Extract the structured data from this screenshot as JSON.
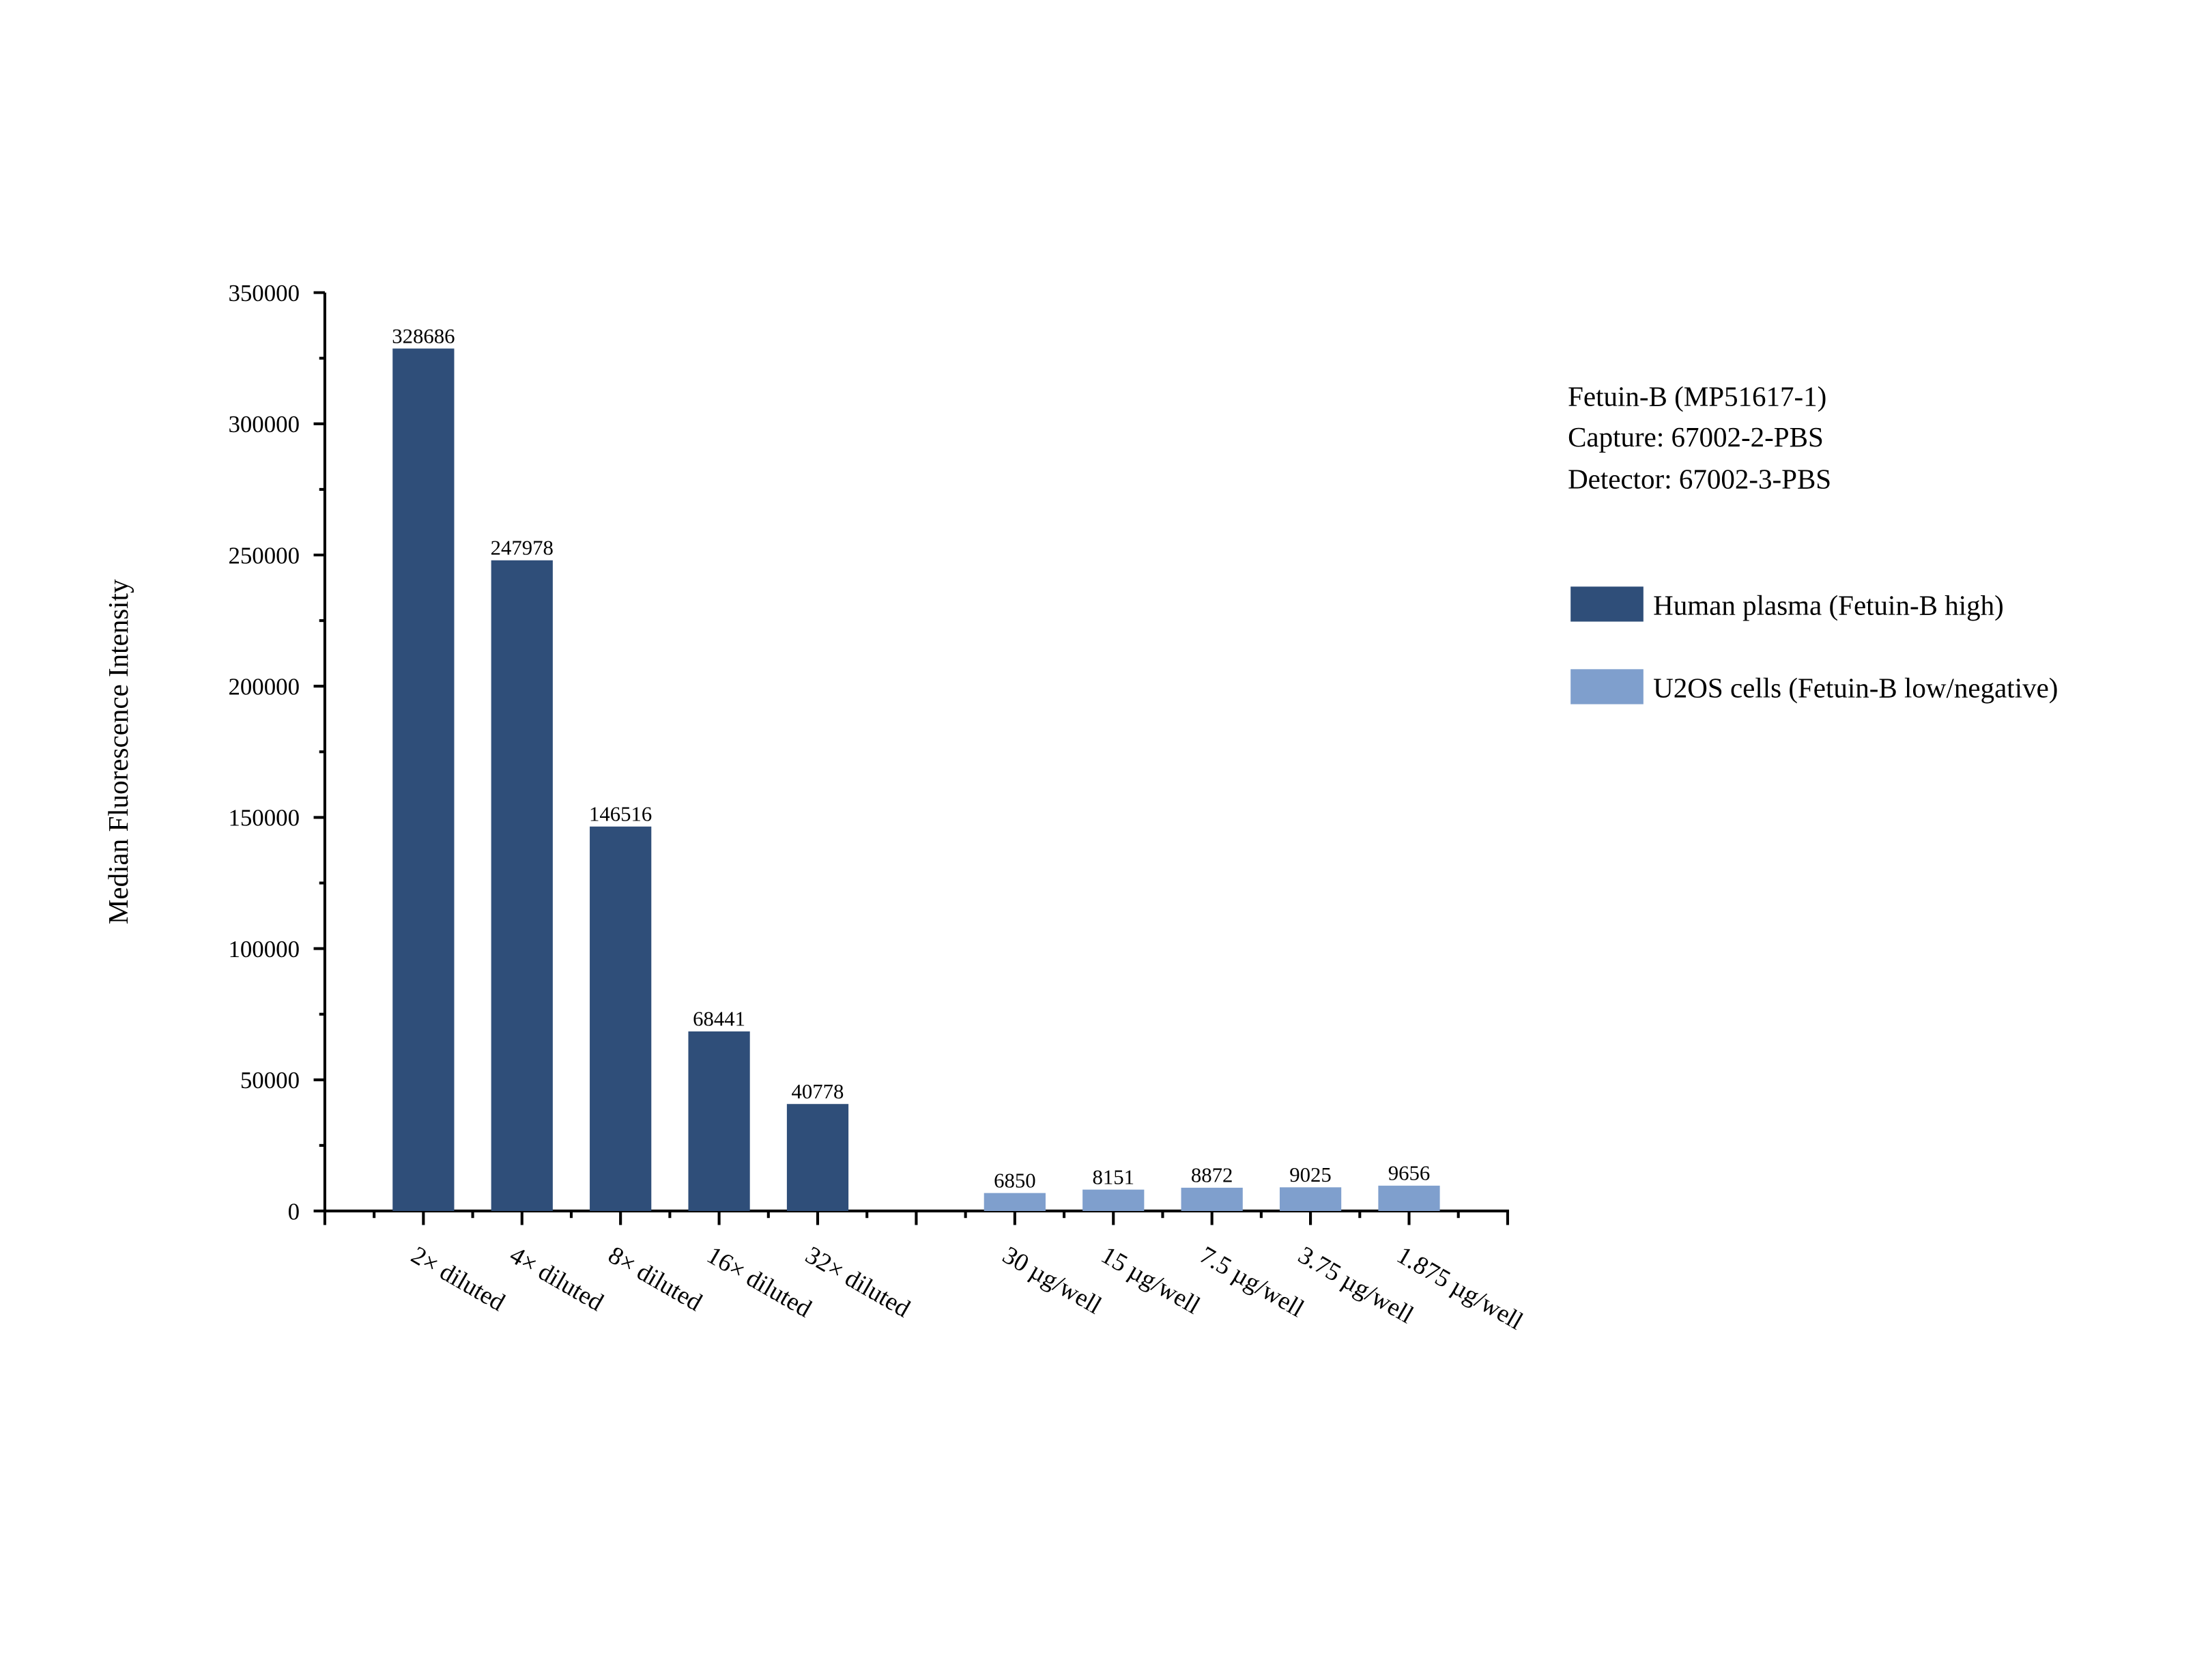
{
  "chart_data": {
    "type": "bar",
    "title": "",
    "xlabel": "",
    "ylabel": "Median Fluorescence Intensity",
    "ylim": [
      0,
      350000
    ],
    "yticks": [
      "0",
      "50000",
      "100000",
      "150000",
      "200000",
      "250000",
      "300000",
      "350000"
    ],
    "grid": false,
    "legend_placement": "right",
    "annotation_lines": [
      "Fetuin-B (MP51617-1)",
      "Capture: 67002-2-PBS",
      "Detector: 67002-3-PBS"
    ],
    "series": [
      {
        "name": "Human plasma (Fetuin-B high)",
        "color": "#2F4E79",
        "categories": [
          "2× diluted",
          "4× diluted",
          "8× diluted",
          "16× diluted",
          "32× diluted"
        ],
        "values": [
          328686,
          247978,
          146516,
          68441,
          40778
        ],
        "labels": [
          "328686",
          "247978",
          "146516",
          "68441",
          "40778"
        ]
      },
      {
        "name": "U2OS cells (Fetuin-B low/negative)",
        "color": "#7F9FCD",
        "categories": [
          "30 µg/well",
          "15 µg/well",
          "7.5 µg/well",
          "3.75 µg/well",
          "1.875 µg/well"
        ],
        "values": [
          6850,
          8151,
          8872,
          9025,
          9656
        ],
        "labels": [
          "6850",
          "8151",
          "8872",
          "9025",
          "9656"
        ]
      }
    ]
  }
}
